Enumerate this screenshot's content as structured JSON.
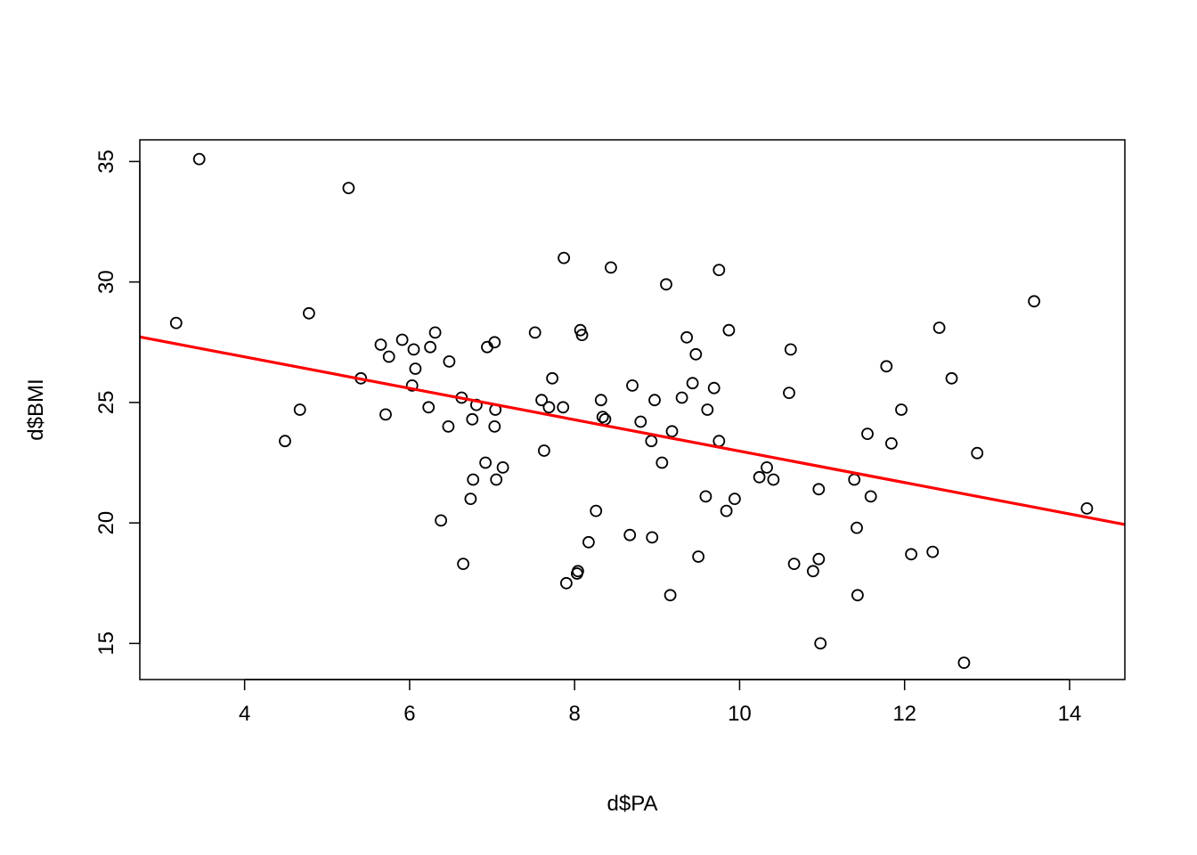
{
  "chart_data": {
    "type": "scatter",
    "xlabel": "d$PA",
    "ylabel": "d$BMI",
    "xlim": [
      2.73,
      14.67
    ],
    "ylim": [
      13.5,
      35.9
    ],
    "x_ticks": [
      4,
      6,
      8,
      10,
      12,
      14
    ],
    "y_ticks": [
      15,
      20,
      25,
      30,
      35
    ],
    "x_tick_labels": [
      "4",
      "6",
      "8",
      "10",
      "12",
      "14"
    ],
    "y_tick_labels": [
      "15",
      "20",
      "25",
      "30",
      "35"
    ],
    "grid": false,
    "legend": "none",
    "point_style": "open-circle",
    "point_color": "#000000",
    "points": [
      [
        3.17,
        28.3
      ],
      [
        3.45,
        35.1
      ],
      [
        4.49,
        23.4
      ],
      [
        4.67,
        24.7
      ],
      [
        4.78,
        28.7
      ],
      [
        5.26,
        33.9
      ],
      [
        5.41,
        26.0
      ],
      [
        5.65,
        27.4
      ],
      [
        5.71,
        24.5
      ],
      [
        5.75,
        26.9
      ],
      [
        5.91,
        27.6
      ],
      [
        6.03,
        25.7
      ],
      [
        6.05,
        27.2
      ],
      [
        6.07,
        26.4
      ],
      [
        6.23,
        24.8
      ],
      [
        6.25,
        27.3
      ],
      [
        6.31,
        27.9
      ],
      [
        6.38,
        20.1
      ],
      [
        6.47,
        24.0
      ],
      [
        6.48,
        26.7
      ],
      [
        6.63,
        25.2
      ],
      [
        6.65,
        18.3
      ],
      [
        6.74,
        21.0
      ],
      [
        6.76,
        24.3
      ],
      [
        6.77,
        21.8
      ],
      [
        6.81,
        24.9
      ],
      [
        6.92,
        22.5
      ],
      [
        6.94,
        27.3
      ],
      [
        7.03,
        27.5
      ],
      [
        7.03,
        24.0
      ],
      [
        7.04,
        24.7
      ],
      [
        7.05,
        21.8
      ],
      [
        7.13,
        22.3
      ],
      [
        7.52,
        27.9
      ],
      [
        7.6,
        25.1
      ],
      [
        7.63,
        23.0
      ],
      [
        7.69,
        24.8
      ],
      [
        7.73,
        26.0
      ],
      [
        7.86,
        24.8
      ],
      [
        7.87,
        31.0
      ],
      [
        7.9,
        17.5
      ],
      [
        8.03,
        17.9
      ],
      [
        8.04,
        18.0
      ],
      [
        8.07,
        28.0
      ],
      [
        8.09,
        27.8
      ],
      [
        8.17,
        19.2
      ],
      [
        8.26,
        20.5
      ],
      [
        8.32,
        25.1
      ],
      [
        8.34,
        24.4
      ],
      [
        8.37,
        24.3
      ],
      [
        8.44,
        30.6
      ],
      [
        8.67,
        19.5
      ],
      [
        8.7,
        25.7
      ],
      [
        8.8,
        24.2
      ],
      [
        8.93,
        23.4
      ],
      [
        8.94,
        19.4
      ],
      [
        8.97,
        25.1
      ],
      [
        9.06,
        22.5
      ],
      [
        9.11,
        29.9
      ],
      [
        9.16,
        17.0
      ],
      [
        9.18,
        23.8
      ],
      [
        9.3,
        25.2
      ],
      [
        9.36,
        27.7
      ],
      [
        9.43,
        25.8
      ],
      [
        9.47,
        27.0
      ],
      [
        9.5,
        18.6
      ],
      [
        9.59,
        21.1
      ],
      [
        9.61,
        24.7
      ],
      [
        9.69,
        25.6
      ],
      [
        9.75,
        30.5
      ],
      [
        9.75,
        23.4
      ],
      [
        9.84,
        20.5
      ],
      [
        9.87,
        28.0
      ],
      [
        9.94,
        21.0
      ],
      [
        10.24,
        21.9
      ],
      [
        10.33,
        22.3
      ],
      [
        10.41,
        21.8
      ],
      [
        10.6,
        25.4
      ],
      [
        10.62,
        27.2
      ],
      [
        10.66,
        18.3
      ],
      [
        10.89,
        18.0
      ],
      [
        10.96,
        21.4
      ],
      [
        10.96,
        18.5
      ],
      [
        10.98,
        15.0
      ],
      [
        11.39,
        21.8
      ],
      [
        11.42,
        19.8
      ],
      [
        11.43,
        17.0
      ],
      [
        11.55,
        23.7
      ],
      [
        11.59,
        21.1
      ],
      [
        11.78,
        26.5
      ],
      [
        11.84,
        23.3
      ],
      [
        11.96,
        24.7
      ],
      [
        12.08,
        18.7
      ],
      [
        12.34,
        18.8
      ],
      [
        12.42,
        28.1
      ],
      [
        12.57,
        26.0
      ],
      [
        12.72,
        14.2
      ],
      [
        12.88,
        22.9
      ],
      [
        13.57,
        29.2
      ],
      [
        14.21,
        20.6
      ]
    ],
    "fit_line": {
      "color": "#ff0000",
      "intercept": 29.5,
      "slope": -0.652
    }
  }
}
